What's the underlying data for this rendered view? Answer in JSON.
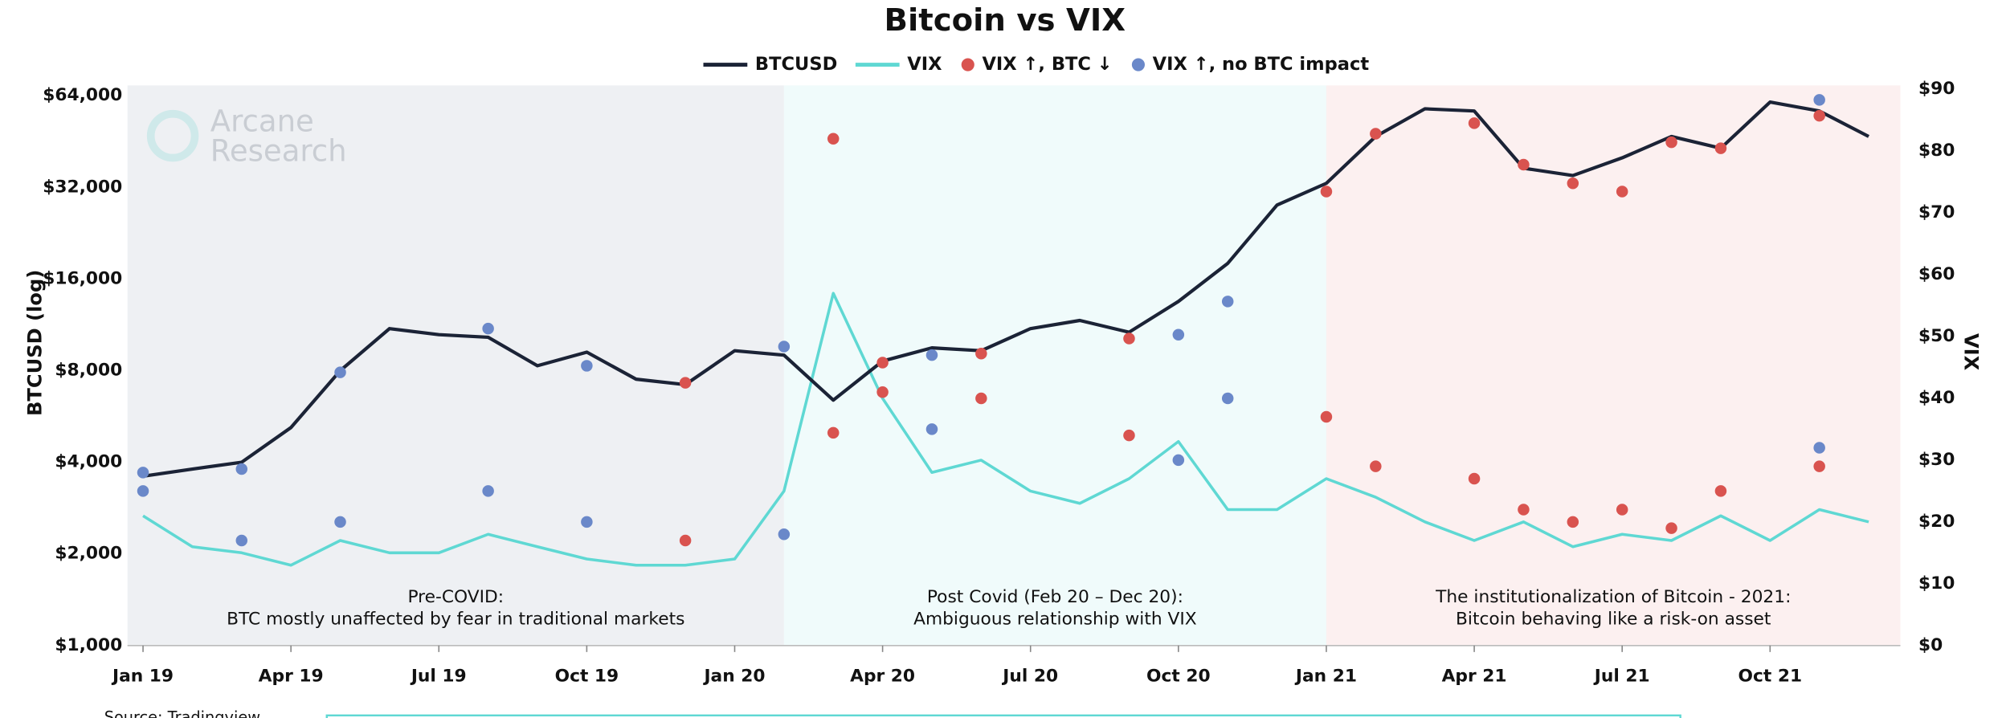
{
  "chart_data": {
    "type": "line",
    "title": "Bitcoin vs VIX",
    "watermark": [
      "Arcane",
      "Research"
    ],
    "source": "Source: Tradingview",
    "ylabel": "BTCUSD (log)",
    "y2label": "VIX",
    "log_scale": true,
    "x": [
      "2019-01",
      "2019-02",
      "2019-03",
      "2019-04",
      "2019-05",
      "2019-06",
      "2019-07",
      "2019-08",
      "2019-09",
      "2019-10",
      "2019-11",
      "2019-12",
      "2020-01",
      "2020-02",
      "2020-03",
      "2020-04",
      "2020-05",
      "2020-06",
      "2020-07",
      "2020-08",
      "2020-09",
      "2020-10",
      "2020-11",
      "2020-12",
      "2021-01",
      "2021-02",
      "2021-03",
      "2021-04",
      "2021-05",
      "2021-06",
      "2021-07",
      "2021-08",
      "2021-09",
      "2021-10",
      "2021-11",
      "2021-12"
    ],
    "xlim": [
      "2019-01",
      "2021-12"
    ],
    "xticks": [
      {
        "value": "2019-01",
        "label": "Jan 19"
      },
      {
        "value": "2019-04",
        "label": "Apr 19"
      },
      {
        "value": "2019-07",
        "label": "Jul 19"
      },
      {
        "value": "2019-10",
        "label": "Oct 19"
      },
      {
        "value": "2020-01",
        "label": "Jan 20"
      },
      {
        "value": "2020-04",
        "label": "Apr 20"
      },
      {
        "value": "2020-07",
        "label": "Jul 20"
      },
      {
        "value": "2020-10",
        "label": "Oct 20"
      },
      {
        "value": "2021-01",
        "label": "Jan 21"
      },
      {
        "value": "2021-04",
        "label": "Apr 21"
      },
      {
        "value": "2021-07",
        "label": "Jul 21"
      },
      {
        "value": "2021-10",
        "label": "Oct 21"
      }
    ],
    "ylim": [
      1000,
      64000
    ],
    "yticks": [
      {
        "value": 1000,
        "label": "$1,000"
      },
      {
        "value": 2000,
        "label": "$2,000"
      },
      {
        "value": 4000,
        "label": "$4,000"
      },
      {
        "value": 8000,
        "label": "$8,000"
      },
      {
        "value": 16000,
        "label": "$16,000"
      },
      {
        "value": 32000,
        "label": "$32,000"
      },
      {
        "value": 64000,
        "label": "$64,000"
      }
    ],
    "y2lim": [
      0,
      90
    ],
    "y2ticks": [
      {
        "value": 0,
        "label": "$0"
      },
      {
        "value": 10,
        "label": "$10"
      },
      {
        "value": 20,
        "label": "$20"
      },
      {
        "value": 30,
        "label": "$30"
      },
      {
        "value": 40,
        "label": "$40"
      },
      {
        "value": 50,
        "label": "$50"
      },
      {
        "value": 60,
        "label": "$60"
      },
      {
        "value": 70,
        "label": "$70"
      },
      {
        "value": 80,
        "label": "$80"
      },
      {
        "value": 90,
        "label": "$90"
      }
    ],
    "series": [
      {
        "name": "BTCUSD",
        "color": "#1b2336",
        "values": [
          3600,
          3800,
          4000,
          5200,
          8000,
          11000,
          10500,
          10300,
          8300,
          9200,
          7500,
          7200,
          9300,
          9000,
          6400,
          8600,
          9500,
          9300,
          11000,
          11700,
          10700,
          13500,
          18000,
          28000,
          33000,
          47000,
          58000,
          57000,
          37000,
          35000,
          40000,
          47000,
          43000,
          61000,
          57000,
          47000
        ]
      },
      {
        "name": "VIX",
        "color": "#5fd8d3",
        "axis": "y2",
        "values": [
          21,
          16,
          15,
          13,
          17,
          15,
          15,
          18,
          16,
          14,
          13,
          13,
          14,
          25,
          57,
          40,
          28,
          30,
          25,
          23,
          27,
          33,
          22,
          22,
          27,
          24,
          20,
          17,
          20,
          16,
          18,
          17,
          21,
          17,
          22,
          20
        ]
      },
      {
        "name": "VIX ↑, BTC ↓",
        "color": "#d9534f",
        "kind": "marker",
        "x": [
          "2019-12",
          "2020-03",
          "2020-04",
          "2020-06",
          "2020-09",
          "2021-01",
          "2021-02",
          "2021-04",
          "2021-05",
          "2021-06",
          "2021-07",
          "2021-08",
          "2021-09",
          "2021-11"
        ],
        "values": [
          7300,
          5000,
          8500,
          9100,
          10200,
          31000,
          48000,
          52000,
          38000,
          33000,
          31000,
          45000,
          43000,
          55000
        ],
        "y2values": [
          17,
          82,
          41,
          40,
          34,
          37,
          29,
          27,
          22,
          20,
          22,
          19,
          25,
          29
        ]
      },
      {
        "name": "VIX ↑, no BTC impact",
        "color": "#6a88c9",
        "kind": "marker",
        "x": [
          "2019-01",
          "2019-03",
          "2019-05",
          "2019-08",
          "2019-10",
          "2020-02",
          "2020-05",
          "2020-10",
          "2020-11",
          "2021-11"
        ],
        "values": [
          3700,
          3800,
          7900,
          11000,
          8300,
          9600,
          9000,
          10500,
          13500,
          62000
        ],
        "y2values": [
          25,
          17,
          20,
          25,
          20,
          18,
          35,
          30,
          40,
          32
        ]
      }
    ],
    "regions": [
      {
        "start": "2019-01",
        "end": "2020-02",
        "color": "#eef0f3",
        "label": [
          "Pre-COVID:",
          "BTC mostly unaffected by fear in traditional markets"
        ]
      },
      {
        "start": "2020-02",
        "end": "2021-01",
        "color": "#f0fbfb",
        "label": [
          "Post Covid (Feb 20 – Dec 20):",
          "Ambiguous relationship with VIX"
        ]
      },
      {
        "start": "2021-01",
        "end": "2021-12",
        "color": "#fcf0f0",
        "label": [
          "The institutionalization of Bitcoin - 2021:",
          "Bitcoin behaving like a risk-on asset"
        ]
      }
    ]
  }
}
